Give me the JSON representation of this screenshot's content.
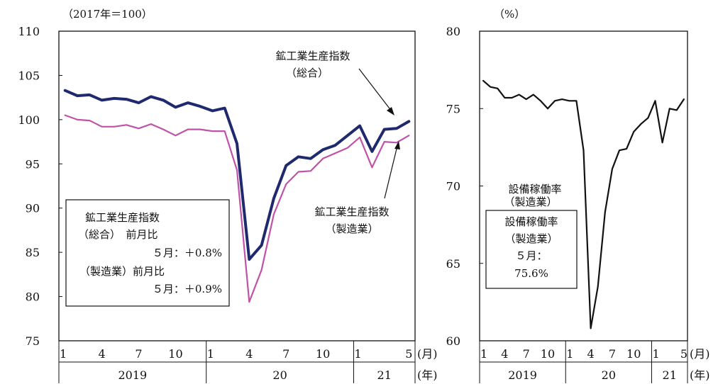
{
  "chart_data": [
    {
      "type": "line",
      "unit_label": "（2017年＝100）",
      "ylim": [
        75,
        110
      ],
      "yticks": [
        "110",
        "105",
        "100",
        "95",
        "90",
        "85",
        "80",
        "75"
      ],
      "x_month_labels": [
        "1",
        "4",
        "7",
        "10",
        "1",
        "4",
        "7",
        "10",
        "1",
        "5"
      ],
      "x_month_positions": [
        0,
        3,
        6,
        9,
        12,
        15,
        18,
        21,
        24,
        28
      ],
      "x_year_labels": [
        "2019",
        "20",
        "21"
      ],
      "x_unit_month": "(月)",
      "x_unit_year": "(年)",
      "series": [
        {
          "name": "鉱工業生産指数（総合）",
          "color": "#1f2a6e",
          "values": [
            103.3,
            102.7,
            102.8,
            102.2,
            102.4,
            102.3,
            101.9,
            102.6,
            102.2,
            101.4,
            101.9,
            101.5,
            101.0,
            101.3,
            97.3,
            84.2,
            85.8,
            91.1,
            94.8,
            95.8,
            95.6,
            96.6,
            97.1,
            98.2,
            99.3,
            96.4,
            98.9,
            99.0,
            99.8
          ]
        },
        {
          "name": "鉱工業生産指数（製造業）",
          "color": "#c052a8",
          "values": [
            100.5,
            100.0,
            99.9,
            99.2,
            99.2,
            99.4,
            99.0,
            99.5,
            98.9,
            98.2,
            98.9,
            98.9,
            98.7,
            98.7,
            94.3,
            79.4,
            83.0,
            89.3,
            92.7,
            94.1,
            94.2,
            95.6,
            96.2,
            96.8,
            98.0,
            94.6,
            97.5,
            97.4,
            98.2
          ]
        }
      ],
      "annotations": {
        "total_label_line1": "鉱工業生産指数",
        "total_label_line2": "（総合）",
        "mfg_label_line1": "鉱工業生産指数",
        "mfg_label_line2": "（製造業）"
      },
      "infobox": [
        "鉱工業生産指数",
        "（総合）　前月比",
        "５月：＋0.8%",
        "（製造業）前月比",
        "５月：＋0.9%"
      ]
    },
    {
      "type": "line",
      "unit_label": "（%）",
      "ylim": [
        60,
        80
      ],
      "yticks": [
        "80",
        "75",
        "70",
        "65",
        "60"
      ],
      "x_month_labels": [
        "1",
        "4",
        "7",
        "10",
        "1",
        "4",
        "7",
        "10",
        "1",
        "5"
      ],
      "x_month_positions": [
        0,
        3,
        6,
        9,
        12,
        15,
        18,
        21,
        24,
        28
      ],
      "x_year_labels": [
        "2019",
        "20",
        "21"
      ],
      "x_unit_month": "(月)",
      "x_unit_year": "(年)",
      "series": [
        {
          "name": "設備稼働率（製造業）",
          "color": "#111111",
          "values": [
            76.8,
            76.4,
            76.3,
            75.7,
            75.7,
            75.9,
            75.6,
            75.9,
            75.5,
            75.0,
            75.5,
            75.6,
            75.5,
            75.5,
            72.3,
            60.8,
            63.5,
            68.3,
            71.1,
            72.3,
            72.4,
            73.5,
            74.0,
            74.4,
            75.5,
            72.8,
            75.0,
            74.9,
            75.6
          ]
        }
      ],
      "annotations": {
        "series_label_line1": "設備稼働率",
        "series_label_line2": "（製造業）"
      },
      "infobox": [
        "設備稼働率",
        "（製造業）",
        "５月：",
        "75.6%"
      ]
    }
  ]
}
